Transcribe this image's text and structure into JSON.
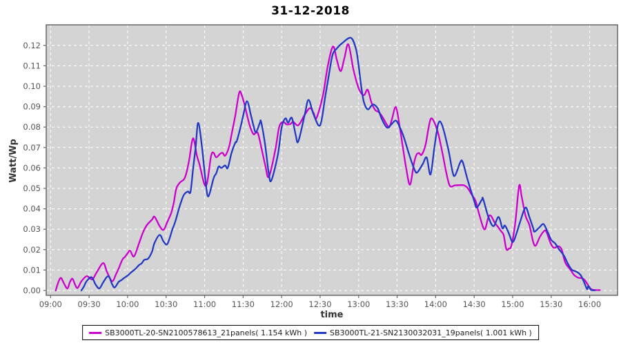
{
  "title": "31-12-2018",
  "axes": {
    "y_label": "Watt/Wp",
    "x_label": "time",
    "y_ticks": [
      "0.00",
      "0.01",
      "0.02",
      "0.03",
      "0.04",
      "0.05",
      "0.06",
      "0.07",
      "0.08",
      "0.09",
      "0.10",
      "0.11",
      "0.12"
    ],
    "x_ticks": [
      "09:00",
      "09:30",
      "10:00",
      "10:30",
      "11:00",
      "11:30",
      "12:00",
      "12:30",
      "13:00",
      "13:30",
      "14:00",
      "14:30",
      "15:00",
      "15:30",
      "16:00"
    ]
  },
  "colors": {
    "plot_background": "#d4d4d4",
    "grid": "#ffffff",
    "plot_border": "#666666",
    "tick_text": "#555555",
    "series_magenta": "#cc00cc",
    "series_blue": "#2238c2"
  },
  "legend": {
    "items": [
      {
        "label": "SB3000TL-20-SN2100578613_21panels( 1.154 kWh )",
        "color": "#cc00cc"
      },
      {
        "label": "SB3000TL-21-SN2130032031_19panels( 1.001 kWh )",
        "color": "#2238c2"
      }
    ]
  },
  "chart_data": {
    "type": "line",
    "title": "31-12-2018",
    "xlabel": "time",
    "ylabel": "Watt/Wp",
    "ylim": [
      0,
      0.129
    ],
    "x_unit": "minutes_after_09:00",
    "x_tick_step_minutes": 30,
    "grid": true,
    "legend_position": "bottom",
    "series": [
      {
        "name": "SB3000TL-20-SN2100578613_21panels( 1.154 kWh )",
        "color": "#cc00cc",
        "points": [
          [
            4,
            0.0
          ],
          [
            6,
            0.004
          ],
          [
            8,
            0.0062
          ],
          [
            10,
            0.004
          ],
          [
            13,
            0.001
          ],
          [
            15,
            0.004
          ],
          [
            17,
            0.0058
          ],
          [
            19,
            0.003
          ],
          [
            21,
            0.0012
          ],
          [
            24,
            0.0045
          ],
          [
            28,
            0.007
          ],
          [
            31,
            0.0058
          ],
          [
            33,
            0.0056
          ],
          [
            36,
            0.009
          ],
          [
            41,
            0.0134
          ],
          [
            44,
            0.009
          ],
          [
            48,
            0.0046
          ],
          [
            51,
            0.008
          ],
          [
            53,
            0.0107
          ],
          [
            56,
            0.0152
          ],
          [
            58,
            0.0165
          ],
          [
            60,
            0.0182
          ],
          [
            62,
            0.0195
          ],
          [
            65,
            0.0167
          ],
          [
            69,
            0.0233
          ],
          [
            72,
            0.0284
          ],
          [
            75,
            0.032
          ],
          [
            79,
            0.0347
          ],
          [
            81,
            0.0361
          ],
          [
            85,
            0.0315
          ],
          [
            88,
            0.0297
          ],
          [
            91,
            0.0336
          ],
          [
            94,
            0.038
          ],
          [
            96,
            0.043
          ],
          [
            98,
            0.05
          ],
          [
            101,
            0.053
          ],
          [
            104,
            0.0545
          ],
          [
            106,
            0.058
          ],
          [
            108,
            0.064
          ],
          [
            111,
            0.0745
          ],
          [
            114,
            0.066
          ],
          [
            116,
            0.0618
          ],
          [
            121,
            0.0511
          ],
          [
            125,
            0.0657
          ],
          [
            127,
            0.0674
          ],
          [
            129,
            0.0652
          ],
          [
            132,
            0.0669
          ],
          [
            134,
            0.0674
          ],
          [
            136,
            0.066
          ],
          [
            139,
            0.0702
          ],
          [
            141,
            0.0764
          ],
          [
            144,
            0.086
          ],
          [
            147,
            0.097
          ],
          [
            149,
            0.0955
          ],
          [
            151,
            0.0912
          ],
          [
            155,
            0.0811
          ],
          [
            158,
            0.0766
          ],
          [
            160,
            0.0772
          ],
          [
            162,
            0.076
          ],
          [
            167,
            0.062
          ],
          [
            170,
            0.0556
          ],
          [
            175,
            0.0686
          ],
          [
            178,
            0.0798
          ],
          [
            181,
            0.0826
          ],
          [
            184,
            0.0813
          ],
          [
            187,
            0.0816
          ],
          [
            189,
            0.0826
          ],
          [
            193,
            0.0809
          ],
          [
            198,
            0.086
          ],
          [
            202,
            0.0893
          ],
          [
            205,
            0.0868
          ],
          [
            207,
            0.0843
          ],
          [
            212,
            0.095
          ],
          [
            216,
            0.11
          ],
          [
            220,
            0.1195
          ],
          [
            223,
            0.113
          ],
          [
            226,
            0.1074
          ],
          [
            229,
            0.114
          ],
          [
            232,
            0.1205
          ],
          [
            236,
            0.108
          ],
          [
            240,
            0.099
          ],
          [
            244,
            0.0956
          ],
          [
            247,
            0.0983
          ],
          [
            250,
            0.092
          ],
          [
            253,
            0.0883
          ],
          [
            256,
            0.0872
          ],
          [
            259,
            0.0845
          ],
          [
            262,
            0.0812
          ],
          [
            264,
            0.08
          ],
          [
            266,
            0.084
          ],
          [
            269,
            0.0898
          ],
          [
            272,
            0.08
          ],
          [
            274,
            0.072
          ],
          [
            277,
            0.06
          ],
          [
            280,
            0.0518
          ],
          [
            283,
            0.062
          ],
          [
            285,
            0.0664
          ],
          [
            287,
            0.0673
          ],
          [
            289,
            0.0664
          ],
          [
            292,
            0.071
          ],
          [
            294,
            0.078
          ],
          [
            296,
            0.0838
          ],
          [
            298,
            0.0835
          ],
          [
            301,
            0.079
          ],
          [
            303,
            0.0742
          ],
          [
            306,
            0.065
          ],
          [
            308,
            0.0585
          ],
          [
            311,
            0.0513
          ],
          [
            315,
            0.0515
          ],
          [
            319,
            0.0516
          ],
          [
            322,
            0.0515
          ],
          [
            325,
            0.0501
          ],
          [
            328,
            0.047
          ],
          [
            331,
            0.044
          ],
          [
            334,
            0.0372
          ],
          [
            338,
            0.0299
          ],
          [
            341,
            0.0358
          ],
          [
            343,
            0.0366
          ],
          [
            346,
            0.0332
          ],
          [
            348,
            0.0316
          ],
          [
            351,
            0.029
          ],
          [
            353,
            0.0271
          ],
          [
            355,
            0.0203
          ],
          [
            357,
            0.0205
          ],
          [
            359,
            0.022
          ],
          [
            362,
            0.033
          ],
          [
            365,
            0.0512
          ],
          [
            367,
            0.046
          ],
          [
            370,
            0.0366
          ],
          [
            373,
            0.0321
          ],
          [
            376,
            0.0237
          ],
          [
            378,
            0.022
          ],
          [
            381,
            0.026
          ],
          [
            384,
            0.0288
          ],
          [
            386,
            0.0291
          ],
          [
            389,
            0.024
          ],
          [
            391,
            0.0215
          ],
          [
            393,
            0.0209
          ],
          [
            395,
            0.0217
          ],
          [
            398,
            0.0203
          ],
          [
            401,
            0.0136
          ],
          [
            405,
            0.0102
          ],
          [
            408,
            0.0075
          ],
          [
            411,
            0.0063
          ],
          [
            414,
            0.006
          ],
          [
            416,
            0.0052
          ],
          [
            419,
            0.0024
          ],
          [
            421,
            0.0007
          ],
          [
            423,
            0.0003
          ],
          [
            426,
            0.0002
          ],
          [
            428,
            0.0002
          ]
        ]
      },
      {
        "name": "SB3000TL-21-SN2130032031_19panels( 1.001 kWh )",
        "color": "#2238c2",
        "points": [
          [
            24,
            0.0
          ],
          [
            26,
            0.002
          ],
          [
            28,
            0.0045
          ],
          [
            32,
            0.0065
          ],
          [
            35,
            0.003
          ],
          [
            38,
            0.001
          ],
          [
            41,
            0.004
          ],
          [
            45,
            0.007
          ],
          [
            48,
            0.003
          ],
          [
            50,
            0.0015
          ],
          [
            53,
            0.0042
          ],
          [
            55,
            0.005
          ],
          [
            57,
            0.006
          ],
          [
            60,
            0.0073
          ],
          [
            63,
            0.009
          ],
          [
            66,
            0.0105
          ],
          [
            69,
            0.0125
          ],
          [
            71,
            0.0133
          ],
          [
            73,
            0.015
          ],
          [
            76,
            0.0156
          ],
          [
            79,
            0.019
          ],
          [
            81,
            0.0233
          ],
          [
            85,
            0.0272
          ],
          [
            88,
            0.024
          ],
          [
            91,
            0.0228
          ],
          [
            95,
            0.0301
          ],
          [
            97,
            0.0334
          ],
          [
            100,
            0.04
          ],
          [
            102,
            0.044
          ],
          [
            104,
            0.047
          ],
          [
            107,
            0.0485
          ],
          [
            109,
            0.0483
          ],
          [
            111,
            0.0595
          ],
          [
            113,
            0.07
          ],
          [
            115,
            0.0821
          ],
          [
            118,
            0.07
          ],
          [
            121,
            0.052
          ],
          [
            123,
            0.0461
          ],
          [
            127,
            0.055
          ],
          [
            129,
            0.0573
          ],
          [
            131,
            0.0607
          ],
          [
            133,
            0.06
          ],
          [
            136,
            0.0612
          ],
          [
            138,
            0.06
          ],
          [
            141,
            0.0674
          ],
          [
            144,
            0.0725
          ],
          [
            145,
            0.073
          ],
          [
            148,
            0.08
          ],
          [
            150,
            0.0854
          ],
          [
            153,
            0.0927
          ],
          [
            156,
            0.086
          ],
          [
            158,
            0.0809
          ],
          [
            160,
            0.0775
          ],
          [
            163,
            0.082
          ],
          [
            164,
            0.0826
          ],
          [
            167,
            0.072
          ],
          [
            170,
            0.0573
          ],
          [
            172,
            0.0539
          ],
          [
            177,
            0.0663
          ],
          [
            180,
            0.0798
          ],
          [
            183,
            0.0843
          ],
          [
            185,
            0.0821
          ],
          [
            188,
            0.0845
          ],
          [
            191,
            0.076
          ],
          [
            193,
            0.073
          ],
          [
            198,
            0.086
          ],
          [
            201,
            0.0933
          ],
          [
            205,
            0.086
          ],
          [
            210,
            0.0809
          ],
          [
            214,
            0.095
          ],
          [
            218,
            0.11
          ],
          [
            220,
            0.116
          ],
          [
            223,
            0.1185
          ],
          [
            227,
            0.121
          ],
          [
            234,
            0.1237
          ],
          [
            238,
            0.118
          ],
          [
            240,
            0.11
          ],
          [
            242,
            0.1
          ],
          [
            244,
            0.0925
          ],
          [
            247,
            0.0887
          ],
          [
            250,
            0.0905
          ],
          [
            252,
            0.091
          ],
          [
            255,
            0.089
          ],
          [
            258,
            0.084
          ],
          [
            262,
            0.0798
          ],
          [
            265,
            0.081
          ],
          [
            269,
            0.0832
          ],
          [
            272,
            0.08
          ],
          [
            275,
            0.0754
          ],
          [
            280,
            0.0653
          ],
          [
            284,
            0.0585
          ],
          [
            286,
            0.058
          ],
          [
            290,
            0.062
          ],
          [
            293,
            0.0651
          ],
          [
            296,
            0.0568
          ],
          [
            299,
            0.07
          ],
          [
            302,
            0.0816
          ],
          [
            305,
            0.081
          ],
          [
            310,
            0.0687
          ],
          [
            313,
            0.0585
          ],
          [
            315,
            0.0562
          ],
          [
            319,
            0.0625
          ],
          [
            321,
            0.063
          ],
          [
            325,
            0.054
          ],
          [
            330,
            0.0439
          ],
          [
            332,
            0.0406
          ],
          [
            336,
            0.0445
          ],
          [
            337,
            0.0448
          ],
          [
            341,
            0.0361
          ],
          [
            345,
            0.0315
          ],
          [
            349,
            0.036
          ],
          [
            352,
            0.0305
          ],
          [
            354,
            0.0318
          ],
          [
            357,
            0.028
          ],
          [
            360,
            0.0237
          ],
          [
            363,
            0.028
          ],
          [
            366,
            0.034
          ],
          [
            370,
            0.0406
          ],
          [
            373,
            0.036
          ],
          [
            376,
            0.0305
          ],
          [
            377,
            0.0288
          ],
          [
            381,
            0.031
          ],
          [
            384,
            0.0325
          ],
          [
            387,
            0.029
          ],
          [
            390,
            0.0248
          ],
          [
            393,
            0.0231
          ],
          [
            396,
            0.0203
          ],
          [
            400,
            0.017
          ],
          [
            403,
            0.0131
          ],
          [
            406,
            0.0102
          ],
          [
            410,
            0.0091
          ],
          [
            413,
            0.0075
          ],
          [
            416,
            0.0035
          ],
          [
            418,
            0.0006
          ],
          [
            419,
            0.0022
          ],
          [
            421,
            0.0003
          ],
          [
            424,
            0.0001
          ]
        ]
      }
    ]
  }
}
